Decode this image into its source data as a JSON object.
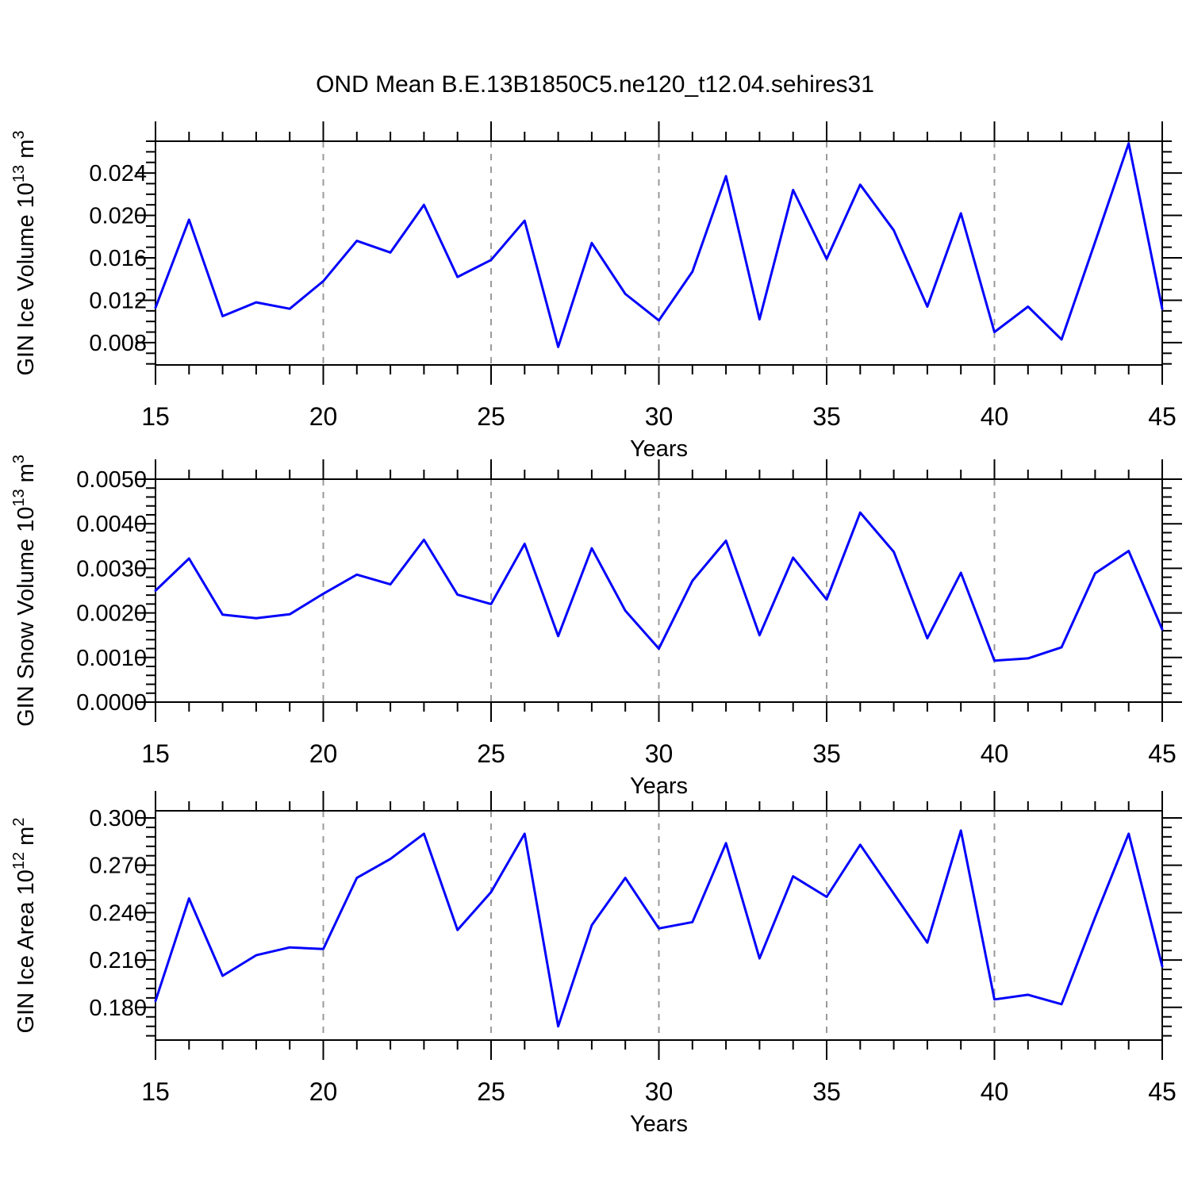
{
  "title": "OND Mean B.E.13B1850C5.ne120_t12.04.sehires31",
  "colors": {
    "line": "#0202fc",
    "grid": "#9a9a9a",
    "axis": "#000000",
    "text": "#000000"
  },
  "chart_data": [
    {
      "type": "line",
      "name": "gin-ice-volume",
      "ylabel": "GIN Ice Volume 10^13 m^3",
      "ylabel_segments": [
        {
          "t": "GIN Ice Volume 10"
        },
        {
          "t": "13",
          "sup": true
        },
        {
          "t": " m"
        },
        {
          "t": "3",
          "sup": true
        }
      ],
      "xlabel": "Years",
      "x": [
        15,
        16,
        17,
        18,
        19,
        20,
        21,
        22,
        23,
        24,
        25,
        26,
        27,
        28,
        29,
        30,
        31,
        32,
        33,
        34,
        35,
        36,
        37,
        38,
        39,
        40,
        41,
        42,
        43,
        44,
        45
      ],
      "values": [
        0.0113,
        0.0196,
        0.0105,
        0.0118,
        0.0112,
        0.0138,
        0.0176,
        0.0165,
        0.021,
        0.0142,
        0.0158,
        0.0195,
        0.0076,
        0.0174,
        0.0126,
        0.0101,
        0.0147,
        0.0237,
        0.0102,
        0.0224,
        0.0159,
        0.0229,
        0.0186,
        0.0114,
        0.0202,
        0.009,
        0.0114,
        0.0083,
        0.0175,
        0.0268,
        0.0112
      ],
      "xlim": [
        15,
        45
      ],
      "ylim": [
        0.0059,
        0.027
      ],
      "xticks": [
        15,
        20,
        25,
        30,
        35,
        40,
        45
      ],
      "xtick_labels": [
        "15",
        "20",
        "25",
        "30",
        "35",
        "40",
        "45"
      ],
      "x_minor_step": 1,
      "yticks": [
        0.008,
        0.012,
        0.016,
        0.02,
        0.024
      ],
      "ytick_labels": [
        "0.008",
        "0.012",
        "0.016",
        "0.020",
        "0.024"
      ],
      "y_minor_step": 0.001,
      "grid_x": [
        20,
        25,
        30,
        35,
        40
      ],
      "grid_style": "vertical-dashed"
    },
    {
      "type": "line",
      "name": "gin-snow-volume",
      "ylabel": "GIN Snow Volume 10^13 m^3",
      "ylabel_segments": [
        {
          "t": "GIN Snow Volume 10"
        },
        {
          "t": "13",
          "sup": true
        },
        {
          "t": " m"
        },
        {
          "t": "3",
          "sup": true
        }
      ],
      "xlabel": "Years",
      "x": [
        15,
        16,
        17,
        18,
        19,
        20,
        21,
        22,
        23,
        24,
        25,
        26,
        27,
        28,
        29,
        30,
        31,
        32,
        33,
        34,
        35,
        36,
        37,
        38,
        39,
        40,
        41,
        42,
        43,
        44,
        45
      ],
      "values": [
        0.0025,
        0.00322,
        0.00196,
        0.00188,
        0.00197,
        0.00243,
        0.00286,
        0.00264,
        0.00364,
        0.00241,
        0.0022,
        0.00355,
        0.00148,
        0.00345,
        0.00205,
        0.0012,
        0.00272,
        0.00362,
        0.0015,
        0.00324,
        0.0023,
        0.00425,
        0.00337,
        0.00143,
        0.0029,
        0.00093,
        0.00098,
        0.00123,
        0.00289,
        0.00339,
        0.00163
      ],
      "xlim": [
        15,
        45
      ],
      "ylim": [
        0.0,
        0.005
      ],
      "xticks": [
        15,
        20,
        25,
        30,
        35,
        40,
        45
      ],
      "xtick_labels": [
        "15",
        "20",
        "25",
        "30",
        "35",
        "40",
        "45"
      ],
      "x_minor_step": 1,
      "yticks": [
        0.0,
        0.001,
        0.002,
        0.003,
        0.004,
        0.005
      ],
      "ytick_labels": [
        "0.0000",
        "0.0010",
        "0.0020",
        "0.0030",
        "0.0040",
        "0.0050"
      ],
      "y_minor_step": 0.0002,
      "grid_x": [
        20,
        25,
        30,
        35,
        40
      ],
      "grid_style": "vertical-dashed"
    },
    {
      "type": "line",
      "name": "gin-ice-area",
      "ylabel": "GIN Ice Area 10^12 m^2",
      "ylabel_segments": [
        {
          "t": "GIN Ice Area 10"
        },
        {
          "t": "12",
          "sup": true
        },
        {
          "t": " m"
        },
        {
          "t": "2",
          "sup": true
        }
      ],
      "xlabel": "Years",
      "x": [
        15,
        16,
        17,
        18,
        19,
        20,
        21,
        22,
        23,
        24,
        25,
        26,
        27,
        28,
        29,
        30,
        31,
        32,
        33,
        34,
        35,
        36,
        37,
        38,
        39,
        40,
        41,
        42,
        43,
        44,
        45
      ],
      "values": [
        0.184,
        0.249,
        0.2,
        0.213,
        0.218,
        0.217,
        0.262,
        0.274,
        0.29,
        0.229,
        0.253,
        0.29,
        0.168,
        0.232,
        0.262,
        0.23,
        0.234,
        0.284,
        0.211,
        0.263,
        0.25,
        0.283,
        0.252,
        0.221,
        0.292,
        0.185,
        0.188,
        0.182,
        0.237,
        0.29,
        0.206
      ],
      "xlim": [
        15,
        45
      ],
      "ylim": [
        0.1593,
        0.3045
      ],
      "xticks": [
        15,
        20,
        25,
        30,
        35,
        40,
        45
      ],
      "xtick_labels": [
        "15",
        "20",
        "25",
        "30",
        "35",
        "40",
        "45"
      ],
      "x_minor_step": 1,
      "yticks": [
        0.18,
        0.21,
        0.24,
        0.27,
        0.3
      ],
      "ytick_labels": [
        "0.180",
        "0.210",
        "0.240",
        "0.270",
        "0.300"
      ],
      "y_minor_step": 0.006,
      "grid_x": [
        20,
        25,
        30,
        35,
        40
      ],
      "grid_style": "vertical-dashed"
    }
  ]
}
